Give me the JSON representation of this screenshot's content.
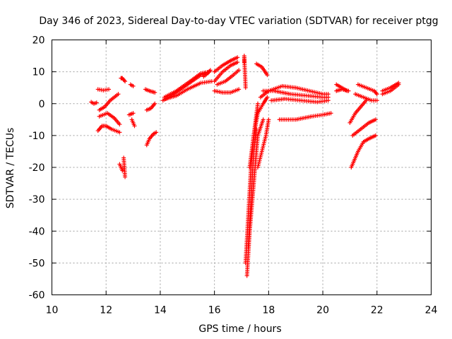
{
  "chart_data": {
    "type": "scatter",
    "title": "Day 346 of 2023, Sidereal Day-to-day VTEC variation (SDTVAR) for receiver ptgg",
    "xlabel": "GPS time / hours",
    "ylabel": "SDTVAR / TECUs",
    "xlim": [
      10,
      24
    ],
    "ylim": [
      -60,
      20
    ],
    "xticks": [
      "10",
      "12",
      "14",
      "16",
      "18",
      "20",
      "22",
      "24"
    ],
    "yticks": [
      "20",
      "10",
      "0",
      "-10",
      "-20",
      "-30",
      "-40",
      "-50",
      "-60"
    ],
    "grid": true,
    "marker": "plus",
    "marker_color": "#ff0000",
    "segments": [
      {
        "x": [
          11.45,
          11.55,
          11.65
        ],
        "y": [
          0.5,
          0,
          0.3
        ]
      },
      {
        "x": [
          11.7,
          11.9,
          12.1
        ],
        "y": [
          4.5,
          4.2,
          4.5
        ]
      },
      {
        "x": [
          11.75,
          11.95,
          12.15,
          12.3,
          12.45
        ],
        "y": [
          -2,
          -1,
          1,
          2,
          3
        ]
      },
      {
        "x": [
          11.7,
          11.85,
          12.0,
          12.2,
          12.5
        ],
        "y": [
          -8.5,
          -7,
          -7,
          -8,
          -9
        ]
      },
      {
        "x": [
          11.75,
          12.05,
          12.3,
          12.5
        ],
        "y": [
          -4,
          -3,
          -4.5,
          -6.5
        ]
      },
      {
        "x": [
          12.5,
          12.55,
          12.6
        ],
        "y": [
          -19,
          -20,
          -21
        ]
      },
      {
        "x": [
          12.55,
          12.6,
          12.7
        ],
        "y": [
          8,
          8,
          7
        ]
      },
      {
        "x": [
          12.65,
          12.7
        ],
        "y": [
          -17,
          -23
        ]
      },
      {
        "x": [
          12.9,
          13.0
        ],
        "y": [
          6,
          5.5
        ]
      },
      {
        "x": [
          12.95,
          13.05
        ],
        "y": [
          -5,
          -7
        ]
      },
      {
        "x": [
          12.85,
          13.0
        ],
        "y": [
          -3.5,
          -3
        ]
      },
      {
        "x": [
          13.45,
          13.6,
          13.8
        ],
        "y": [
          4.5,
          4.0,
          3.5
        ]
      },
      {
        "x": [
          13.5,
          13.6,
          13.75,
          13.85
        ],
        "y": [
          -13,
          -11,
          -9.5,
          -9
        ]
      },
      {
        "x": [
          13.5,
          13.65,
          13.8
        ],
        "y": [
          -2,
          -1.5,
          0
        ]
      },
      {
        "x": [
          14.1,
          14.5,
          15.0,
          15.5,
          15.8
        ],
        "y": [
          1,
          3,
          6,
          9,
          10
        ]
      },
      {
        "x": [
          14.15,
          14.6,
          15.1,
          15.5,
          15.8
        ],
        "y": [
          2,
          4,
          7,
          9.5,
          10
        ]
      },
      {
        "x": [
          14.2,
          14.6,
          15.0,
          15.5,
          15.9
        ],
        "y": [
          1.5,
          2.5,
          4.5,
          6.5,
          7
        ]
      },
      {
        "x": [
          15.6,
          15.75,
          15.85
        ],
        "y": [
          8.5,
          9.5,
          10.5
        ]
      },
      {
        "x": [
          16.0,
          16.3,
          16.6,
          16.85
        ],
        "y": [
          10,
          12,
          13.5,
          14.5
        ]
      },
      {
        "x": [
          16.0,
          16.3,
          16.6,
          16.85
        ],
        "y": [
          7,
          10,
          12,
          13
        ]
      },
      {
        "x": [
          16.0,
          16.3,
          16.6,
          16.9
        ],
        "y": [
          4,
          3.5,
          3.5,
          4.5
        ]
      },
      {
        "x": [
          16.1,
          16.4,
          16.7,
          16.9
        ],
        "y": [
          6,
          7,
          9,
          10.5
        ]
      },
      {
        "x": [
          17.1,
          17.1,
          17.15
        ],
        "y": [
          13,
          15,
          5
        ]
      },
      {
        "x": [
          17.55,
          17.75,
          17.95
        ],
        "y": [
          12.5,
          11.5,
          9
        ]
      },
      {
        "x": [
          17.15,
          17.25,
          17.35,
          17.45,
          17.6
        ],
        "y": [
          -50,
          -35,
          -20,
          -10,
          0
        ]
      },
      {
        "x": [
          17.2,
          17.3,
          17.45,
          17.6,
          17.8
        ],
        "y": [
          -54,
          -40,
          -25,
          -10,
          -5
        ]
      },
      {
        "x": [
          17.25,
          17.35,
          17.45,
          17.55
        ],
        "y": [
          -45,
          -30,
          -15,
          -8
        ]
      },
      {
        "x": [
          17.3,
          17.45,
          17.6,
          17.8,
          17.95
        ],
        "y": [
          -20,
          -10,
          -3,
          0,
          2
        ]
      },
      {
        "x": [
          17.6,
          17.75,
          17.9,
          18.0
        ],
        "y": [
          -20,
          -15,
          -10,
          -5
        ]
      },
      {
        "x": [
          17.7,
          18.0,
          18.5,
          19.0,
          19.5,
          20.0,
          20.2
        ],
        "y": [
          2,
          4,
          5.5,
          5,
          4,
          3,
          3
        ]
      },
      {
        "x": [
          17.8,
          18.2,
          18.8,
          19.4,
          20.0,
          20.2
        ],
        "y": [
          4,
          4,
          3,
          2.5,
          2,
          2
        ]
      },
      {
        "x": [
          18.1,
          18.6,
          19.2,
          19.8,
          20.2
        ],
        "y": [
          1,
          1.5,
          1,
          0.5,
          1
        ]
      },
      {
        "x": [
          18.4,
          19.0,
          19.6,
          20.0,
          20.3
        ],
        "y": [
          -5,
          -5,
          -4,
          -3.5,
          -3
        ]
      },
      {
        "x": [
          20.5,
          20.7,
          20.9
        ],
        "y": [
          6,
          5,
          4
        ]
      },
      {
        "x": [
          20.5,
          20.7,
          20.95
        ],
        "y": [
          4,
          4.5,
          4
        ]
      },
      {
        "x": [
          21.05,
          21.3,
          21.5,
          21.7,
          21.95
        ],
        "y": [
          -20,
          -15,
          -12,
          -11,
          -10
        ]
      },
      {
        "x": [
          21.0,
          21.2,
          21.4,
          21.6
        ],
        "y": [
          -6,
          -3,
          -1,
          1
        ]
      },
      {
        "x": [
          21.1,
          21.4,
          21.7,
          21.95
        ],
        "y": [
          -10,
          -8,
          -6,
          -5
        ]
      },
      {
        "x": [
          21.2,
          21.5,
          21.8,
          22.0
        ],
        "y": [
          3,
          2,
          1,
          1
        ]
      },
      {
        "x": [
          21.3,
          21.6,
          21.9,
          22.0
        ],
        "y": [
          6,
          5,
          4,
          3
        ]
      },
      {
        "x": [
          22.2,
          22.5,
          22.8
        ],
        "y": [
          3,
          4,
          6
        ]
      },
      {
        "x": [
          22.2,
          22.5,
          22.8
        ],
        "y": [
          4,
          5,
          6.5
        ]
      }
    ]
  }
}
